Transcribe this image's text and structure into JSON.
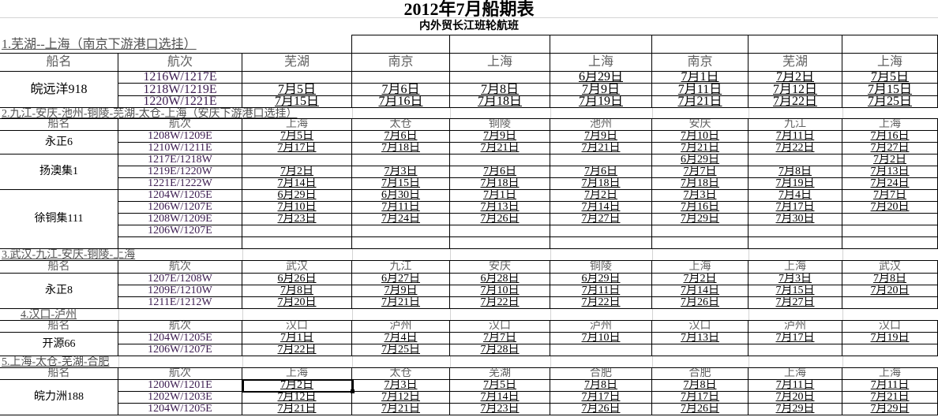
{
  "title": "2012年7月船期表",
  "subtitle": "内外贸长江班轮航班",
  "colors": {
    "port_text": "#606060",
    "voyage_text": "#3c1c50",
    "date_text": "#000000",
    "grid": "#d4d4d4"
  },
  "sections": [
    {
      "title": "1.芜湖--上海（南京下游港口选挂）",
      "headers": [
        "船名",
        "航次",
        "芜湖",
        "南京",
        "上海",
        "上海",
        "南京",
        "芜湖",
        "上海"
      ],
      "ships": [
        {
          "name": "皖远洋918",
          "voyages": [
            {
              "voyage": "1216W/1217E",
              "dates": [
                "",
                "",
                "",
                "6月29日",
                "7月1日",
                "7月2日",
                "7月5日"
              ]
            },
            {
              "voyage": "1218W/1219E",
              "dates": [
                "7月5日",
                "7月6日",
                "7月8日",
                "7月9日",
                "7月11日",
                "7月12日",
                "7月15日"
              ]
            },
            {
              "voyage": "1220W/1221E",
              "dates": [
                "7月15日",
                "7月16日",
                "7月18日",
                "7月19日",
                "7月21日",
                "7月22日",
                "7月25日"
              ]
            }
          ]
        }
      ]
    },
    {
      "title": "2.九江-安庆-池州-铜陵-芜湖-太仓-上海（安庆下游港口选挂）",
      "headers": [
        "船名",
        "航次",
        "上海",
        "太仓",
        "铜陵",
        "池州",
        "安庆",
        "九江",
        "上海"
      ],
      "ships": [
        {
          "name": "永正6",
          "voyages": [
            {
              "voyage": "1208W/1209E",
              "dates": [
                "7月5日",
                "7月6日",
                "7月9日",
                "7月9日",
                "7月10日",
                "7月11日",
                "7月16日"
              ]
            },
            {
              "voyage": "1210W/1211E",
              "dates": [
                "7月17日",
                "7月18日",
                "7月21日",
                "7月21日",
                "7月21日",
                "7月22日",
                "7月27日"
              ]
            }
          ]
        },
        {
          "name": "扬澳集1",
          "voyages": [
            {
              "voyage": "1217E/1218W",
              "dates": [
                "",
                "",
                "",
                "",
                "6月29日",
                "",
                "7月2日"
              ]
            },
            {
              "voyage": "1219E/1220W",
              "dates": [
                "7月2日",
                "7月3日",
                "7月6日",
                "7月6日",
                "7月7日",
                "7月8日",
                "7月13日"
              ]
            },
            {
              "voyage": "1221E/1222W",
              "dates": [
                "7月14日",
                "7月15日",
                "7月18日",
                "7月18日",
                "7月18日",
                "7月19日",
                "7月24日"
              ]
            }
          ]
        },
        {
          "name": "徐铜集111",
          "voyages": [
            {
              "voyage": "1204W/1205E",
              "dates": [
                "6月29日",
                "6月30日",
                "7月1日",
                "7月2日",
                "7月3日",
                "7月4日",
                "7月7日"
              ]
            },
            {
              "voyage": "1206W/1207E",
              "dates": [
                "7月10日",
                "7月11日",
                "7月13日",
                "7月14日",
                "7月16日",
                "7月17日",
                "7月20日"
              ]
            },
            {
              "voyage": "1208W/1209E",
              "dates": [
                "7月23日",
                "7月24日",
                "7月26日",
                "7月27日",
                "7月29日",
                "7月30日",
                ""
              ]
            },
            {
              "voyage": "1206W/1207E",
              "dates": [
                "",
                "",
                "",
                "",
                "",
                "",
                ""
              ]
            },
            {
              "voyage": "",
              "dates": [
                "",
                "",
                "",
                "",
                "",
                "",
                ""
              ]
            }
          ]
        }
      ]
    },
    {
      "title": "3.武汉-九江-安庆-铜陵-上海",
      "headers": [
        "船名",
        "航次",
        "武汉",
        "九江",
        "安庆",
        "铜陵",
        "上海",
        "上海",
        "武汉"
      ],
      "ships": [
        {
          "name": "永正8",
          "voyages": [
            {
              "voyage": "1207E/1208W",
              "dates": [
                "6月26日",
                "6月27日",
                "6月28日",
                "6月29日",
                "7月2日",
                "7月3日",
                "7月8日"
              ]
            },
            {
              "voyage": "1209E/1210W",
              "dates": [
                "7月8日",
                "7月9日",
                "7月10日",
                "7月11日",
                "7月14日",
                "7月15日",
                "7月20日"
              ]
            },
            {
              "voyage": "1211E/1212W",
              "dates": [
                "7月20日",
                "7月21日",
                "7月22日",
                "7月22日",
                "7月26日",
                "7月27日",
                ""
              ]
            }
          ]
        }
      ]
    },
    {
      "title": "4.汉口-泸州",
      "headers": [
        "船名",
        "航次",
        "汉口",
        "泸州",
        "汉口",
        "泸州",
        "汉口",
        "泸州",
        "汉口"
      ],
      "ships": [
        {
          "name": "开源66",
          "voyages": [
            {
              "voyage": "1204W/1205E",
              "dates": [
                "7月1日",
                "7月4日",
                "7月7日",
                "7月10日",
                "7月13日",
                "7月17日",
                "7月19日"
              ]
            },
            {
              "voyage": "1206W/1207E",
              "dates": [
                "7月22日",
                "7月25日",
                "7月28日",
                "",
                "",
                "",
                ""
              ]
            }
          ]
        }
      ]
    },
    {
      "title": "5.上海-太仓-芜湖-合肥",
      "headers": [
        "船名",
        "航次",
        "上海",
        "太仓",
        "芜湖",
        "合肥",
        "合肥",
        "上海",
        "上海"
      ],
      "ships": [
        {
          "name": "皖力洲188",
          "voyages": [
            {
              "voyage": "1200W/1201E",
              "dates": [
                "7月2日",
                "7月3日",
                "7月5日",
                "7月8日",
                "7月8日",
                "7月11日",
                "7月11日"
              ]
            },
            {
              "voyage": "1202W/1203E",
              "dates": [
                "7月12日",
                "7月12日",
                "7月14日",
                "7月17日",
                "7月17日",
                "7月20日",
                "7月21日"
              ]
            },
            {
              "voyage": "1204W/1205E",
              "dates": [
                "7月21日",
                "7月21日",
                "7月23日",
                "7月26日",
                "7月26日",
                "7月29日",
                "7月29日"
              ]
            }
          ]
        }
      ]
    }
  ]
}
